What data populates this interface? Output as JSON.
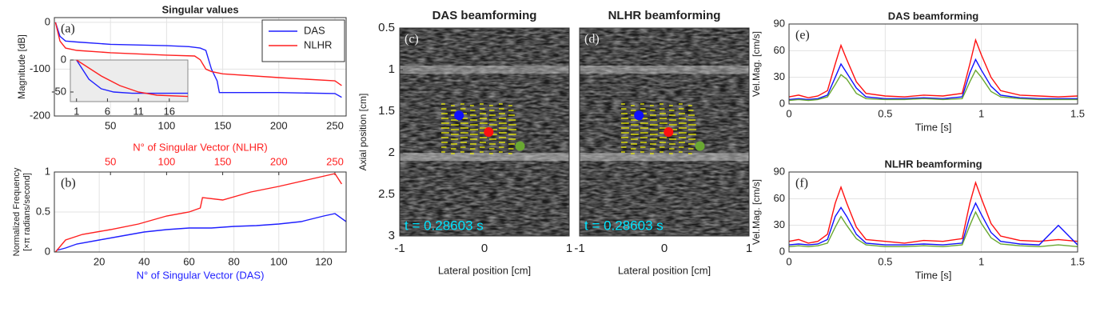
{
  "chart_data": [
    {
      "type": "line",
      "title": "Singular values",
      "annotation": "(a)",
      "ylabel": "Magnitude [dB]",
      "xlim": [
        0,
        260
      ],
      "xticks": [
        50,
        100,
        150,
        200,
        250
      ],
      "ylim": [
        -200,
        10
      ],
      "yticks": [
        -200,
        -100,
        0
      ],
      "grid": true,
      "legend": "upper right",
      "series": [
        {
          "name": "DAS",
          "color": "#1f1fff",
          "x": [
            1,
            5,
            10,
            20,
            50,
            100,
            120,
            130,
            135,
            140,
            145,
            147,
            150,
            200,
            250,
            256
          ],
          "values": [
            0,
            -30,
            -40,
            -42,
            -47,
            -50,
            -52,
            -55,
            -60,
            -100,
            -125,
            -150,
            -150,
            -150,
            -152,
            -160
          ]
        },
        {
          "name": "NLHR",
          "color": "#ff2020",
          "x": [
            1,
            5,
            10,
            20,
            50,
            100,
            125,
            130,
            135,
            140,
            150,
            200,
            250,
            256
          ],
          "values": [
            0,
            -40,
            -55,
            -60,
            -65,
            -70,
            -72,
            -80,
            -100,
            -105,
            -110,
            -118,
            -125,
            -135
          ]
        }
      ],
      "inset": {
        "xlim": [
          0,
          19
        ],
        "xticks": [
          1,
          6,
          11,
          16
        ],
        "ylim": [
          -65,
          0
        ],
        "yticks": [
          -50,
          0
        ],
        "series": [
          {
            "color": "#1f1fff",
            "x": [
              1,
              3,
              5,
              7,
              10,
              19
            ],
            "values": [
              0,
              -30,
              -45,
              -50,
              -52,
              -52
            ]
          },
          {
            "color": "#ff2020",
            "x": [
              1,
              5,
              8,
              11,
              14,
              19
            ],
            "values": [
              0,
              -25,
              -40,
              -50,
              -55,
              -57
            ]
          }
        ]
      }
    },
    {
      "type": "line",
      "annotation": "(b)",
      "ylabel": [
        "Normalized Frequency",
        "[×π radians/second]"
      ],
      "xlabel": "N° of Singular Vector (DAS)",
      "x2label": "N° of Singular Vector (NLHR)",
      "xlim": [
        0,
        130
      ],
      "xticks": [
        20,
        40,
        60,
        80,
        100,
        120
      ],
      "x2lim": [
        0,
        260
      ],
      "x2ticks": [
        50,
        100,
        150,
        200,
        250
      ],
      "ylim": [
        0,
        1
      ],
      "yticks": [
        0,
        0.5,
        1
      ],
      "grid": true,
      "series": [
        {
          "color": "#1f1fff",
          "x": [
            1,
            5,
            10,
            20,
            30,
            40,
            50,
            60,
            70,
            80,
            90,
            100,
            110,
            120,
            125,
            130
          ],
          "values": [
            0.02,
            0.05,
            0.1,
            0.15,
            0.2,
            0.25,
            0.28,
            0.3,
            0.3,
            0.32,
            0.33,
            0.35,
            0.38,
            0.45,
            0.48,
            0.38
          ]
        },
        {
          "color": "#ff2020",
          "axis": "x2",
          "x": [
            1,
            10,
            25,
            50,
            75,
            100,
            120,
            130,
            132,
            150,
            175,
            200,
            225,
            250,
            256
          ],
          "values": [
            0,
            0.15,
            0.22,
            0.28,
            0.35,
            0.45,
            0.5,
            0.55,
            0.68,
            0.65,
            0.75,
            0.82,
            0.9,
            0.98,
            0.85
          ]
        }
      ]
    },
    {
      "type": "scatter",
      "title": "DAS beamforming",
      "annotation": "(c)",
      "time_label": "t = 0.28603 s",
      "xlabel": "Lateral position [cm]",
      "ylabel": "Axial position [cm]",
      "xlim": [
        -1,
        1
      ],
      "xticks": [
        -1,
        0,
        1
      ],
      "ylim": [
        0.5,
        3
      ],
      "yticks": [
        0.5,
        1,
        1.5,
        2,
        2.5,
        3
      ],
      "y_reversed": true,
      "series": [
        {
          "color": "#1010ff",
          "x": [
            -0.3
          ],
          "values": [
            1.55
          ]
        },
        {
          "color": "#ff1010",
          "x": [
            0.05
          ],
          "values": [
            1.75
          ]
        },
        {
          "color": "#6aa832",
          "x": [
            0.42
          ],
          "values": [
            1.92
          ]
        }
      ]
    },
    {
      "type": "scatter",
      "title": "NLHR beamforming",
      "annotation": "(d)",
      "time_label": "t = 0.28603 s",
      "xlabel": "Lateral position [cm]",
      "xlim": [
        -1,
        1
      ],
      "xticks": [
        -1,
        0,
        1
      ],
      "ylim": [
        0.5,
        3
      ],
      "y_reversed": true,
      "series": [
        {
          "color": "#1010ff",
          "x": [
            -0.3
          ],
          "values": [
            1.55
          ]
        },
        {
          "color": "#ff1010",
          "x": [
            0.05
          ],
          "values": [
            1.75
          ]
        },
        {
          "color": "#6aa832",
          "x": [
            0.42
          ],
          "values": [
            1.92
          ]
        }
      ]
    },
    {
      "type": "line",
      "title": "DAS beamforming",
      "annotation": "(e)",
      "xlabel": "Time [s]",
      "ylabel": "Vel.Mag. [cm/s]",
      "xlim": [
        0,
        1.5
      ],
      "xticks": [
        0,
        0.5,
        1,
        1.5
      ],
      "ylim": [
        0,
        90
      ],
      "yticks": [
        0,
        30,
        60,
        90
      ],
      "grid": true,
      "x": [
        0,
        0.05,
        0.1,
        0.15,
        0.2,
        0.24,
        0.27,
        0.3,
        0.35,
        0.4,
        0.5,
        0.6,
        0.7,
        0.8,
        0.9,
        0.94,
        0.97,
        1.0,
        1.05,
        1.1,
        1.2,
        1.3,
        1.4,
        1.5
      ],
      "series": [
        {
          "color": "#ff1010",
          "values": [
            8,
            10,
            7,
            9,
            15,
            45,
            66,
            50,
            25,
            12,
            9,
            8,
            10,
            9,
            12,
            45,
            72,
            55,
            30,
            15,
            10,
            9,
            8,
            9
          ]
        },
        {
          "color": "#1010ff",
          "values": [
            5,
            6,
            5,
            6,
            10,
            30,
            45,
            35,
            18,
            8,
            6,
            6,
            7,
            6,
            8,
            35,
            50,
            38,
            20,
            10,
            7,
            6,
            6,
            6
          ]
        },
        {
          "color": "#6aa832",
          "values": [
            4,
            5,
            4,
            5,
            8,
            22,
            33,
            28,
            12,
            6,
            5,
            5,
            6,
            5,
            6,
            25,
            38,
            30,
            14,
            8,
            6,
            5,
            5,
            5
          ]
        }
      ]
    },
    {
      "type": "line",
      "title": "NLHR beamforming",
      "annotation": "(f)",
      "xlabel": "Time [s]",
      "ylabel": "Vel.Mag. [cm/s]",
      "xlim": [
        0,
        1.5
      ],
      "xticks": [
        0,
        0.5,
        1,
        1.5
      ],
      "ylim": [
        0,
        90
      ],
      "yticks": [
        0,
        30,
        60,
        90
      ],
      "grid": true,
      "x": [
        0,
        0.05,
        0.1,
        0.15,
        0.2,
        0.24,
        0.27,
        0.3,
        0.35,
        0.4,
        0.5,
        0.6,
        0.7,
        0.8,
        0.9,
        0.94,
        0.97,
        1.0,
        1.05,
        1.1,
        1.2,
        1.3,
        1.4,
        1.5
      ],
      "series": [
        {
          "color": "#ff1010",
          "values": [
            12,
            14,
            10,
            12,
            20,
            55,
            73,
            55,
            28,
            14,
            12,
            10,
            13,
            12,
            15,
            55,
            78,
            60,
            32,
            18,
            13,
            12,
            14,
            12
          ]
        },
        {
          "color": "#1010ff",
          "values": [
            8,
            9,
            8,
            9,
            14,
            40,
            50,
            40,
            20,
            10,
            8,
            8,
            9,
            8,
            10,
            40,
            55,
            42,
            22,
            12,
            9,
            8,
            30,
            8
          ]
        },
        {
          "color": "#6aa832",
          "values": [
            6,
            7,
            6,
            7,
            10,
            28,
            40,
            30,
            15,
            8,
            6,
            6,
            7,
            6,
            8,
            30,
            45,
            32,
            16,
            9,
            7,
            6,
            8,
            6
          ]
        }
      ]
    }
  ]
}
